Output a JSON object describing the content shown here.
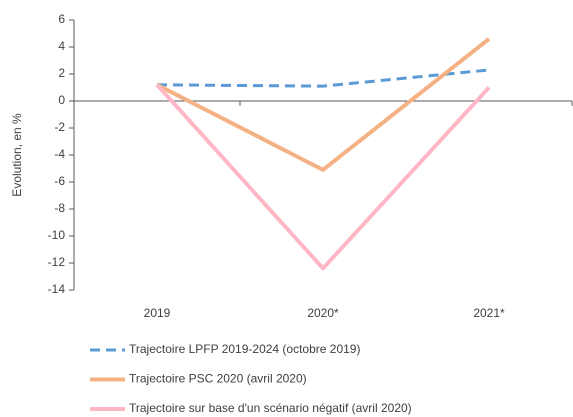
{
  "chart_data": {
    "type": "line",
    "y_label": "Evolution, en %",
    "categories": [
      "2019",
      "2020*",
      "2021*"
    ],
    "series": [
      {
        "name": "Trajectoire LPFP 2019-2024 (octobre 2019)",
        "color": "#5b9bd5",
        "dashed": true,
        "values": [
          1.2,
          1.1,
          2.3
        ]
      },
      {
        "name": "Trajectoire PSC 2020 (avril 2020)",
        "color": "#f4b183",
        "dashed": false,
        "values": [
          1.2,
          -5.1,
          4.6
        ]
      },
      {
        "name": "Trajectoire sur base d'un scénario négatif (avril 2020)",
        "color": "#ffb7c5",
        "dashed": false,
        "values": [
          1.2,
          -12.4,
          1.0
        ]
      }
    ],
    "ylim": [
      -14,
      6
    ],
    "yticks": [
      -14,
      -12,
      -10,
      -8,
      -6,
      -4,
      -2,
      0,
      2,
      4,
      6
    ],
    "grid": false,
    "legend": "bottom"
  }
}
